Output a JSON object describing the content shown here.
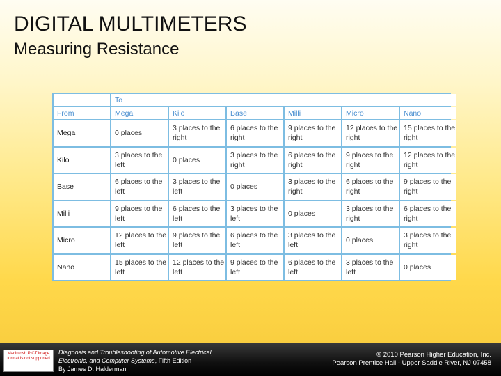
{
  "slide": {
    "title": "DIGITAL MULTIMETERS",
    "subtitle": "Measuring Resistance"
  },
  "table": {
    "super_header": "To",
    "headers": [
      "From",
      "Mega",
      "Kilo",
      "Base",
      "Milli",
      "Micro",
      "Nano"
    ],
    "rows": [
      {
        "from": "Mega",
        "cells": [
          "0 places",
          "3 places to the right",
          "6 places to the right",
          "9 places to the right",
          "12 places to the right",
          "15 places to the right"
        ]
      },
      {
        "from": "Kilo",
        "cells": [
          "3 places to the left",
          "0 places",
          "3 places to the right",
          "6 places to the right",
          "9 places to the right",
          "12 places to the right"
        ]
      },
      {
        "from": "Base",
        "cells": [
          "6 places to the left",
          "3 places to the left",
          "0 places",
          "3 places to the right",
          "6 places to the right",
          "9 places to the right"
        ]
      },
      {
        "from": "Milli",
        "cells": [
          "9 places to the left",
          "6 places to the left",
          "3 places to the left",
          "0 places",
          "3 places to the right",
          "6 places to the right"
        ]
      },
      {
        "from": "Micro",
        "cells": [
          "12 places to the left",
          "9 places to the left",
          "6 places to the left",
          "3 places to the left",
          "0 places",
          "3 places to the right"
        ]
      },
      {
        "from": "Nano",
        "cells": [
          "15 places to the left",
          "12 places to the left",
          "9 places to the left",
          "6 places to the left",
          "3 places to the left",
          "0 places"
        ]
      }
    ],
    "header_color": "#4a8fd0",
    "grid_color": "#7dbde2"
  },
  "footer": {
    "logo_text": "Macintosh PICT image format is not supported",
    "book_line1": "Diagnosis and Troubleshooting of Automotive Electrical,",
    "book_line2": "Electronic, and Computer Systems",
    "book_line2_suffix": ", Fifth Edition",
    "book_line3": "By James D. Halderman",
    "copyright_line1": "© 2010 Pearson Higher Education, Inc.",
    "copyright_line2": "Pearson Prentice Hall - Upper Saddle River, NJ 07458"
  }
}
